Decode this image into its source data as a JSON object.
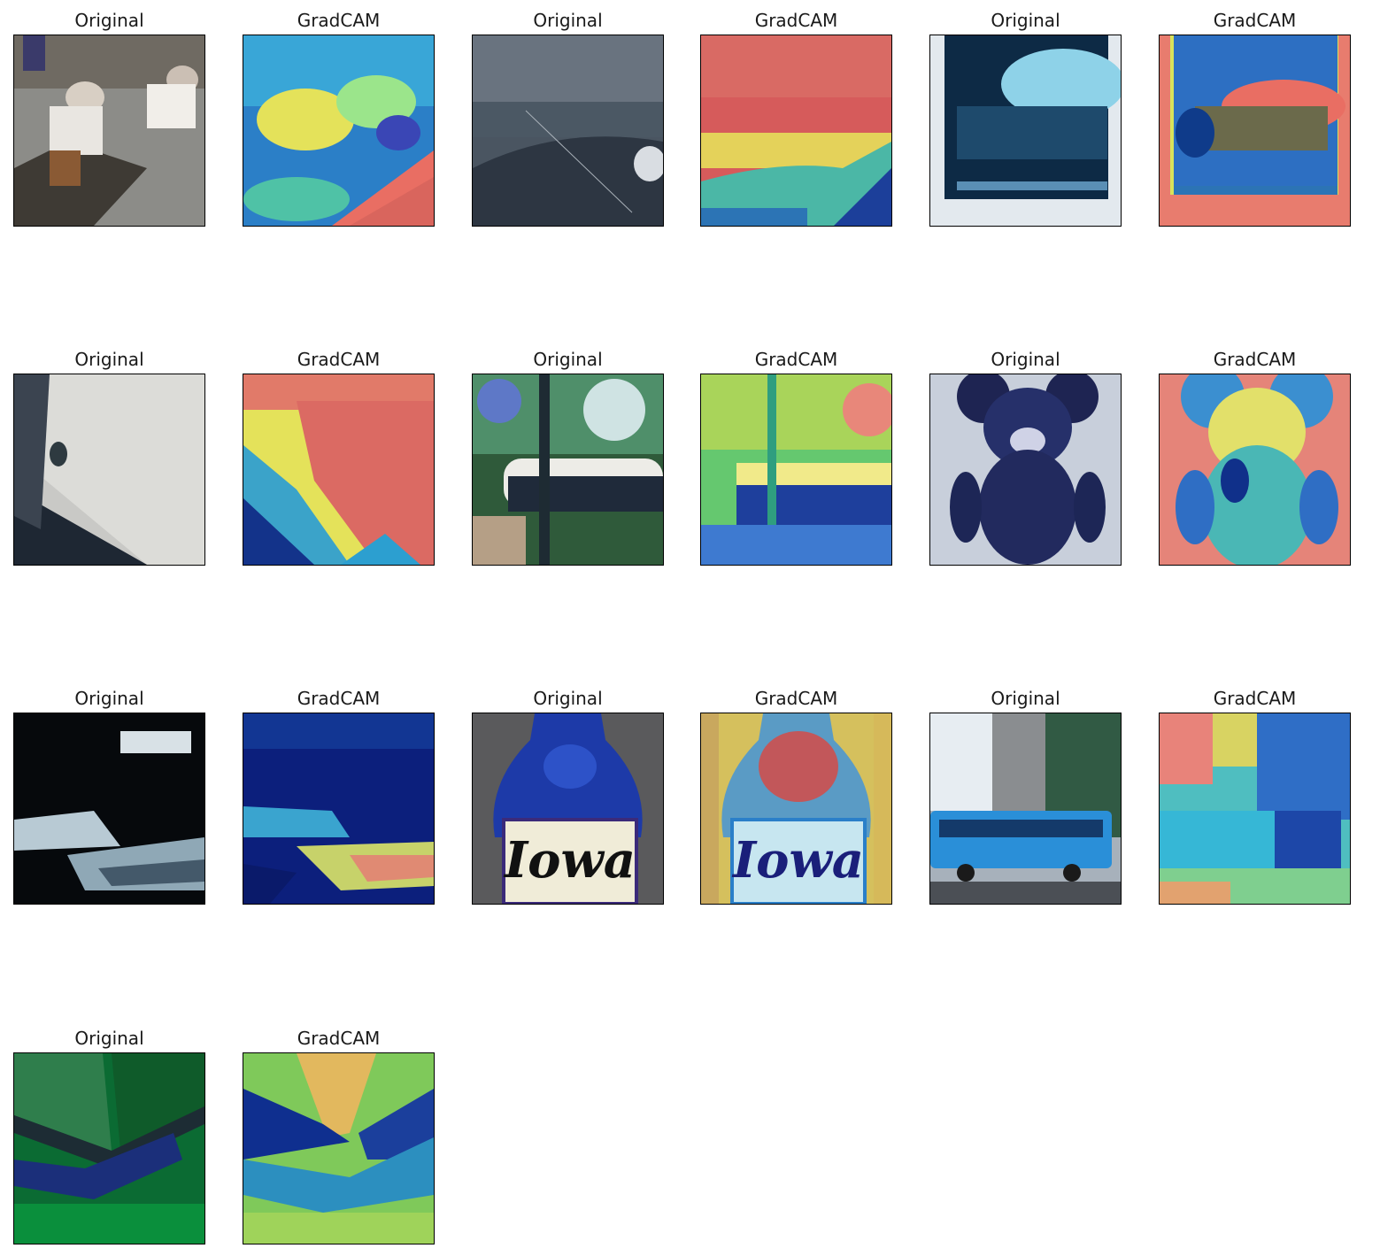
{
  "figure": {
    "titles": {
      "original": "Original",
      "gradcam": "GradCAM"
    },
    "rows": [
      [
        {
          "kind": "original",
          "subject": "people-on-boat"
        },
        {
          "kind": "gradcam",
          "subject": "people-on-boat"
        },
        {
          "kind": "original",
          "subject": "sea-and-boat-hull"
        },
        {
          "kind": "gradcam",
          "subject": "sea-and-boat-hull"
        },
        {
          "kind": "original",
          "subject": "framed-photo-of-building"
        },
        {
          "kind": "gradcam",
          "subject": "framed-photo-of-building"
        }
      ],
      [
        {
          "kind": "original",
          "subject": "white-bathtub"
        },
        {
          "kind": "gradcam",
          "subject": "white-bathtub"
        },
        {
          "kind": "original",
          "subject": "outdoor-bathtub-in-garden"
        },
        {
          "kind": "gradcam",
          "subject": "outdoor-bathtub-in-garden"
        },
        {
          "kind": "original",
          "subject": "teddy-bear"
        },
        {
          "kind": "gradcam",
          "subject": "teddy-bear"
        }
      ],
      [
        {
          "kind": "original",
          "subject": "dark-interior"
        },
        {
          "kind": "gradcam",
          "subject": "dark-interior"
        },
        {
          "kind": "original",
          "subject": "blue-bottle-label",
          "label_text": "Iowa"
        },
        {
          "kind": "gradcam",
          "subject": "blue-bottle-label",
          "label_text": "Iowa"
        },
        {
          "kind": "original",
          "subject": "city-bus"
        },
        {
          "kind": "gradcam",
          "subject": "city-bus"
        }
      ],
      [
        {
          "kind": "original",
          "subject": "insect-on-leaf"
        },
        {
          "kind": "gradcam",
          "subject": "insect-on-leaf"
        }
      ]
    ],
    "colors": {
      "background": "#ffffff",
      "title_text": "#1a1a1a",
      "frame": "#000000"
    }
  }
}
